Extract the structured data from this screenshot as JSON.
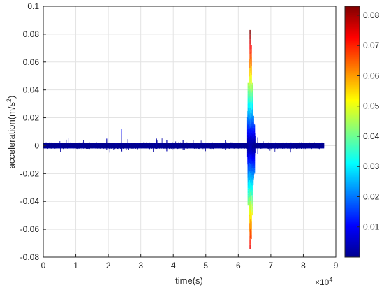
{
  "chart_data": {
    "type": "line",
    "title": "",
    "xlabel": "time(s)",
    "ylabel_base": "acceleration(m/s",
    "ylabel_sup": "2",
    "ylabel_end": ")",
    "x_multiplier": "×10",
    "x_multiplier_exp": "4",
    "xlim": [
      0,
      90000
    ],
    "ylim": [
      -0.08,
      0.1
    ],
    "x_ticks": [
      0,
      10000,
      20000,
      30000,
      40000,
      50000,
      60000,
      70000,
      80000,
      90000
    ],
    "x_tick_labels": [
      "0",
      "1",
      "2",
      "3",
      "4",
      "5",
      "6",
      "7",
      "8",
      "9"
    ],
    "y_ticks": [
      -0.08,
      -0.06,
      -0.04,
      -0.02,
      0,
      0.02,
      0.04,
      0.06,
      0.08,
      0.1
    ],
    "y_tick_labels": [
      "-0.08",
      "-0.06",
      "-0.04",
      "-0.02",
      "0",
      "0.02",
      "0.04",
      "0.06",
      "0.08",
      "0.1"
    ],
    "grid": true,
    "colorbar": {
      "colormap": "jet",
      "range": [
        0,
        0.083
      ],
      "ticks": [
        0.01,
        0.02,
        0.03,
        0.04,
        0.05,
        0.06,
        0.07,
        0.08
      ],
      "tick_labels": [
        "0.01",
        "0.02",
        "0.03",
        "0.04",
        "0.05",
        "0.06",
        "0.07",
        "0.08"
      ]
    },
    "series": [
      {
        "color_by": "absolute acceleration (jet colormap)",
        "x_range": [
          0,
          86400
        ],
        "baseline_noise_amplitude": 0.002,
        "spikes": [
          {
            "x": 24000,
            "peak": 0.012,
            "trough": -0.004
          },
          {
            "x": 19500,
            "peak": 0.005,
            "trough": -0.003
          },
          {
            "x": 38000,
            "peak": 0.004,
            "trough": -0.004
          },
          {
            "x": 43000,
            "peak": 0.004,
            "trough": -0.003
          },
          {
            "x": 56000,
            "peak": 0.004,
            "trough": -0.003
          },
          {
            "x": 63000,
            "peak": 0.045,
            "trough": -0.043
          },
          {
            "x": 63600,
            "peak": 0.083,
            "trough": -0.074
          },
          {
            "x": 64000,
            "peak": 0.072,
            "trough": -0.067
          },
          {
            "x": 64400,
            "peak": 0.045,
            "trough": -0.05
          },
          {
            "x": 65000,
            "peak": 0.015,
            "trough": -0.02
          },
          {
            "x": 66000,
            "peak": 0.006,
            "trough": -0.006
          }
        ]
      }
    ]
  }
}
